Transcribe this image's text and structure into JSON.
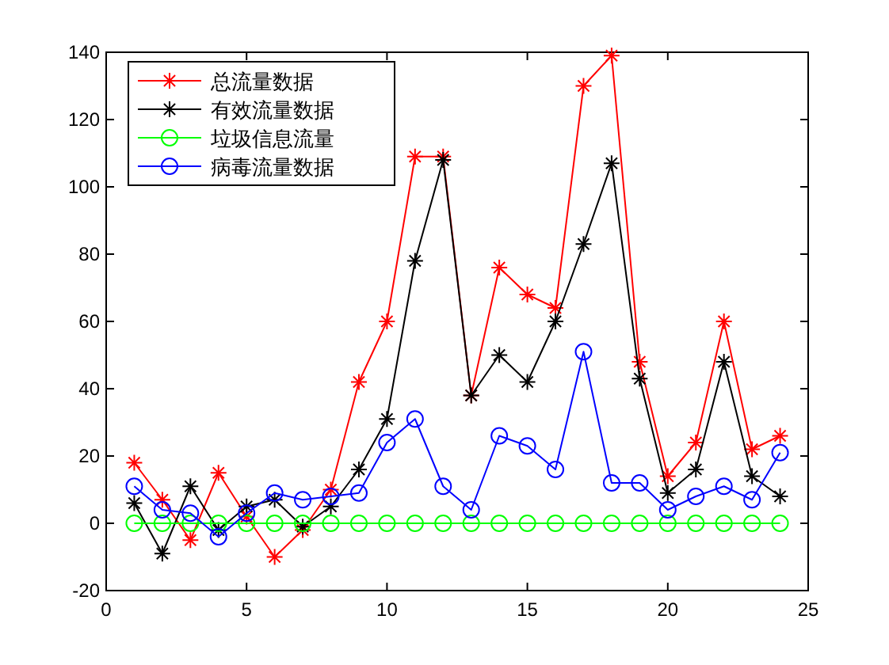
{
  "chart_data": {
    "type": "line",
    "x": [
      1,
      2,
      3,
      4,
      5,
      6,
      7,
      8,
      9,
      10,
      11,
      12,
      13,
      14,
      15,
      16,
      17,
      18,
      19,
      20,
      21,
      22,
      23,
      24
    ],
    "series": [
      {
        "name": "总流量数据",
        "color": "#ff0000",
        "marker": "cross",
        "values": [
          18,
          7,
          -5,
          15,
          2,
          -10,
          -2,
          10,
          42,
          60,
          109,
          109,
          38,
          76,
          68,
          64,
          130,
          139,
          48,
          14,
          24,
          60,
          22,
          26
        ]
      },
      {
        "name": "有效流量数据",
        "color": "#000000",
        "marker": "cross",
        "values": [
          6,
          -9,
          11,
          -2,
          5,
          7,
          -1,
          5,
          16,
          31,
          78,
          108,
          38,
          50,
          42,
          60,
          83,
          107,
          43,
          9,
          16,
          48,
          14,
          8
        ]
      },
      {
        "name": "垃圾信息流量",
        "color": "#00ff00",
        "marker": "circle",
        "values": [
          0,
          0,
          0,
          0,
          0,
          0,
          0,
          0,
          0,
          0,
          0,
          0,
          0,
          0,
          0,
          0,
          0,
          0,
          0,
          0,
          0,
          0,
          0,
          0
        ]
      },
      {
        "name": "病毒流量数据",
        "color": "#0000ff",
        "marker": "circle",
        "values": [
          11,
          4,
          3,
          -4,
          3,
          9,
          7,
          8,
          9,
          24,
          31,
          11,
          4,
          26,
          23,
          16,
          51,
          12,
          12,
          4,
          8,
          11,
          7,
          21
        ]
      }
    ],
    "xlim": [
      0,
      25
    ],
    "ylim": [
      -20,
      140
    ],
    "xticks": [
      0,
      5,
      10,
      15,
      20,
      25
    ],
    "yticks": [
      -20,
      0,
      20,
      40,
      60,
      80,
      100,
      120,
      140
    ],
    "grid": false,
    "legend": "top left",
    "line_style": "solid"
  }
}
